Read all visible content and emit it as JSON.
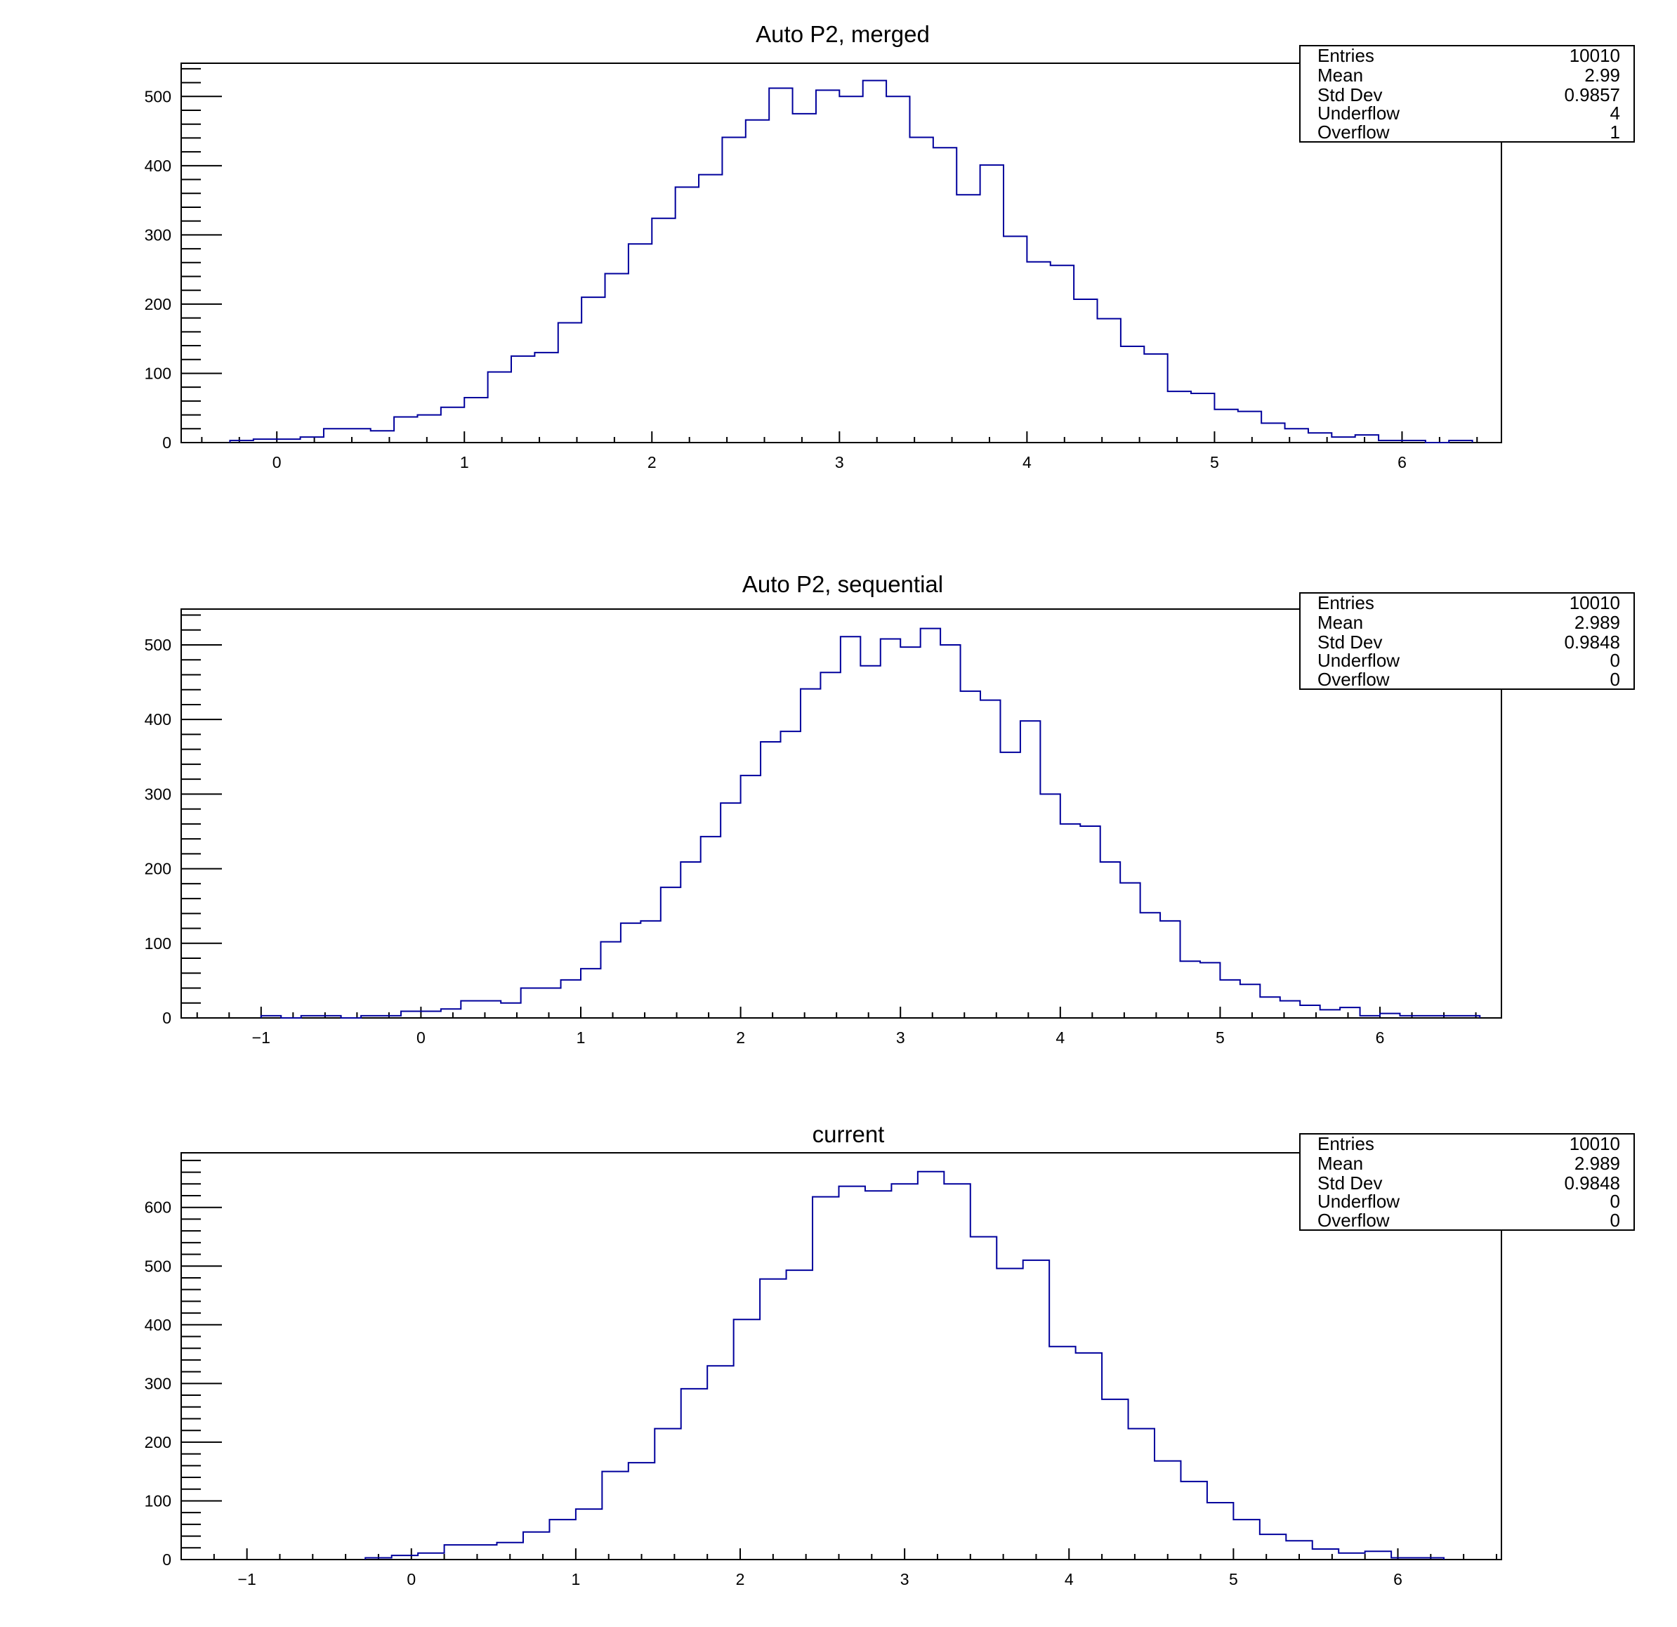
{
  "chart_data": [
    {
      "type": "bar",
      "style": "step-histogram",
      "title": "Auto P2, merged",
      "xlabel": "",
      "ylabel": "",
      "xlim": [
        -0.51,
        6.53
      ],
      "ylim": [
        0,
        548
      ],
      "bin_start": -0.25,
      "bin_width": 0.125,
      "values": [
        3,
        5,
        5,
        8,
        20,
        20,
        17,
        37,
        40,
        51,
        65,
        102,
        125,
        130,
        173,
        210,
        244,
        287,
        324,
        369,
        387,
        441,
        466,
        512,
        475,
        509,
        500,
        523,
        500,
        441,
        426,
        358,
        401,
        298,
        261,
        256,
        207,
        179,
        139,
        128,
        74,
        71,
        48,
        45,
        28,
        20,
        14,
        8,
        11,
        3,
        3,
        0,
        3
      ],
      "xticks": [
        0,
        1,
        2,
        3,
        4,
        5,
        6
      ],
      "xtick_labels": [
        "0",
        "1",
        "2",
        "3",
        "4",
        "5",
        "6"
      ],
      "yticks": [
        0,
        100,
        200,
        300,
        400,
        500
      ],
      "ytick_labels": [
        "0",
        "100",
        "200",
        "300",
        "400",
        "500"
      ],
      "x_minor_step": 0.2,
      "y_minor_step": 20,
      "line_color": "#00009c",
      "stats": [
        {
          "label": "Entries",
          "value": "10010"
        },
        {
          "label": "Mean",
          "value": "2.99"
        },
        {
          "label": "Std Dev",
          "value": "0.9857"
        },
        {
          "label": "Underflow",
          "value": "4"
        },
        {
          "label": "Overflow",
          "value": "1"
        }
      ],
      "legend": "top-right"
    },
    {
      "type": "bar",
      "style": "step-histogram",
      "title": "Auto P2, sequential",
      "xlabel": "",
      "ylabel": "",
      "xlim": [
        -1.5,
        6.76
      ],
      "ylim": [
        0,
        548
      ],
      "bin_start": -1.0,
      "bin_width": 0.125,
      "values": [
        3,
        0,
        3,
        3,
        0,
        3,
        3,
        9,
        9,
        12,
        23,
        23,
        20,
        40,
        40,
        51,
        66,
        102,
        127,
        130,
        175,
        209,
        243,
        288,
        325,
        370,
        384,
        441,
        463,
        511,
        472,
        508,
        497,
        522,
        500,
        438,
        426,
        356,
        398,
        300,
        260,
        257,
        209,
        181,
        141,
        130,
        76,
        74,
        51,
        45,
        28,
        23,
        17,
        11,
        14,
        3,
        6,
        3,
        3,
        3,
        3
      ],
      "xticks": [
        -1,
        0,
        1,
        2,
        3,
        4,
        5,
        6
      ],
      "xtick_labels": [
        "−1",
        "0",
        "1",
        "2",
        "3",
        "4",
        "5",
        "6"
      ],
      "yticks": [
        0,
        100,
        200,
        300,
        400,
        500
      ],
      "ytick_labels": [
        "0",
        "100",
        "200",
        "300",
        "400",
        "500"
      ],
      "x_minor_step": 0.2,
      "y_minor_step": 20,
      "line_color": "#00009c",
      "stats": [
        {
          "label": "Entries",
          "value": "10010"
        },
        {
          "label": "Mean",
          "value": "2.989"
        },
        {
          "label": "Std Dev",
          "value": "0.9848"
        },
        {
          "label": "Underflow",
          "value": "0"
        },
        {
          "label": "Overflow",
          "value": "0"
        }
      ],
      "legend": "top-right"
    },
    {
      "type": "bar",
      "style": "step-histogram",
      "title": "current",
      "xlabel": "",
      "ylabel": "",
      "xlim": [
        -1.4,
        6.63
      ],
      "ylim": [
        0,
        693
      ],
      "bin_start": -0.28,
      "bin_width": 0.16,
      "values": [
        3,
        7,
        11,
        25,
        25,
        29,
        47,
        68,
        86,
        150,
        165,
        223,
        291,
        330,
        409,
        478,
        493,
        618,
        636,
        628,
        640,
        661,
        640,
        550,
        496,
        510,
        363,
        352,
        273,
        223,
        168,
        133,
        97,
        68,
        43,
        32,
        18,
        11,
        14,
        3,
        3
      ],
      "xticks": [
        -1,
        0,
        1,
        2,
        3,
        4,
        5,
        6
      ],
      "xtick_labels": [
        "−1",
        "0",
        "1",
        "2",
        "3",
        "4",
        "5",
        "6"
      ],
      "yticks": [
        0,
        100,
        200,
        300,
        400,
        500,
        600
      ],
      "ytick_labels": [
        "0",
        "100",
        "200",
        "300",
        "400",
        "500",
        "600"
      ],
      "x_minor_step": 0.2,
      "y_minor_step": 20,
      "line_color": "#00009c",
      "stats": [
        {
          "label": "Entries",
          "value": "10010"
        },
        {
          "label": "Mean",
          "value": "2.989"
        },
        {
          "label": "Std Dev",
          "value": "0.9848"
        },
        {
          "label": "Underflow",
          "value": "0"
        },
        {
          "label": "Overflow",
          "value": "0"
        }
      ],
      "legend": "top-right"
    }
  ]
}
